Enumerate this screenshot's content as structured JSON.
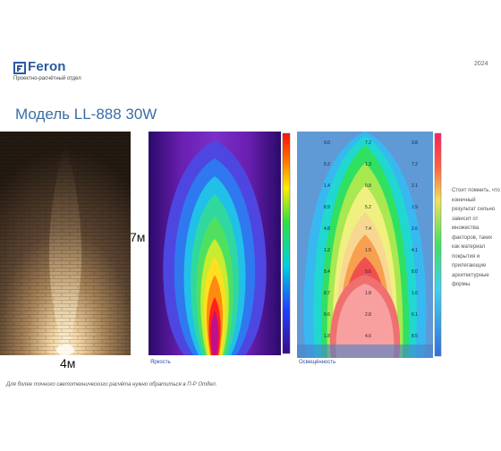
{
  "header": {
    "logo_text": "Feron",
    "department": "Проектно-расчётный отдел",
    "year": "2024",
    "brand_color": "#2c5aa0"
  },
  "title": "Модель LL-888 30W",
  "labels": {
    "height": "7м",
    "width": "4м"
  },
  "captions": {
    "luminance": "Яркость",
    "illuminance": "Освещённость"
  },
  "note": "Стоит помнить, что конечный результат сильно зависит от множества факторов, таких как материал покрытия и прилегающие архитектурные формы.",
  "footnote": "Для более точного светотехнического расчёта нужно обратиться в П-Р Отдел.",
  "illuminance_values": [
    "9.0",
    "7.2",
    "3.8",
    "5.2",
    "1.3",
    "7.2",
    "1.4",
    "0.8",
    "2.1",
    "8.9",
    "5.2",
    "1.9",
    "4.8",
    "7.4",
    "2.6",
    "1.2",
    "1.5",
    "4.1",
    "8.4",
    "5.6",
    "8.0",
    "8.7",
    "1.8",
    "1.6",
    "8.6",
    "2.8",
    "6.1",
    "1.8",
    "4.6",
    "8.5"
  ]
}
